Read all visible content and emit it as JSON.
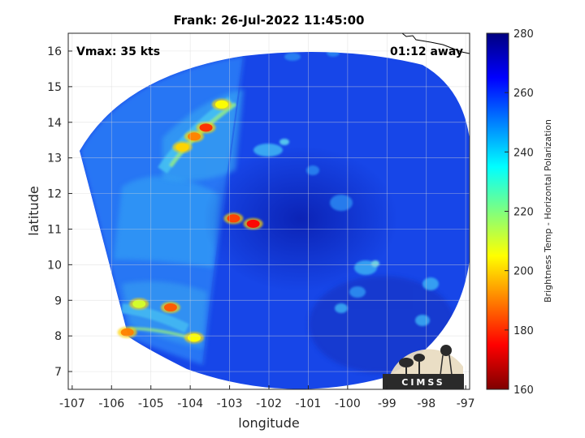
{
  "chart_data": {
    "type": "heatmap",
    "title": "Frank: 26-Jul-2022 11:45:00",
    "xlabel": "longitude",
    "ylabel": "latitude",
    "xlim": [
      -107.1,
      -96.9
    ],
    "ylim": [
      6.5,
      16.5
    ],
    "xticks": [
      -107,
      -106,
      -105,
      -104,
      -103,
      -102,
      -101,
      -100,
      -99,
      -98,
      -97
    ],
    "yticks": [
      7,
      8,
      9,
      10,
      11,
      12,
      13,
      14,
      15,
      16
    ],
    "grid": true,
    "colorbar": {
      "label": "Brightness Temp - Horizontal Polarization",
      "range": [
        160,
        280
      ],
      "ticks": [
        160,
        180,
        200,
        220,
        240,
        260,
        280
      ],
      "colormap": "jet"
    },
    "annotations": {
      "vmax": "Vmax: 35 kts",
      "time_away": "01:12 away"
    },
    "features": [
      {
        "lon": -102.4,
        "lat": 11.15,
        "tb": 175
      },
      {
        "lon": -102.9,
        "lat": 11.3,
        "tb": 182
      },
      {
        "lon": -103.6,
        "lat": 13.85,
        "tb": 180
      },
      {
        "lon": -103.9,
        "lat": 13.6,
        "tb": 190
      },
      {
        "lon": -104.2,
        "lat": 13.3,
        "tb": 200
      },
      {
        "lon": -103.2,
        "lat": 14.5,
        "tb": 205
      },
      {
        "lon": -104.5,
        "lat": 8.8,
        "tb": 185
      },
      {
        "lon": -105.3,
        "lat": 8.9,
        "tb": 210
      },
      {
        "lon": -105.6,
        "lat": 8.1,
        "tb": 190
      },
      {
        "lon": -103.9,
        "lat": 7.95,
        "tb": 205
      }
    ],
    "logo_text": "CIMSS"
  }
}
